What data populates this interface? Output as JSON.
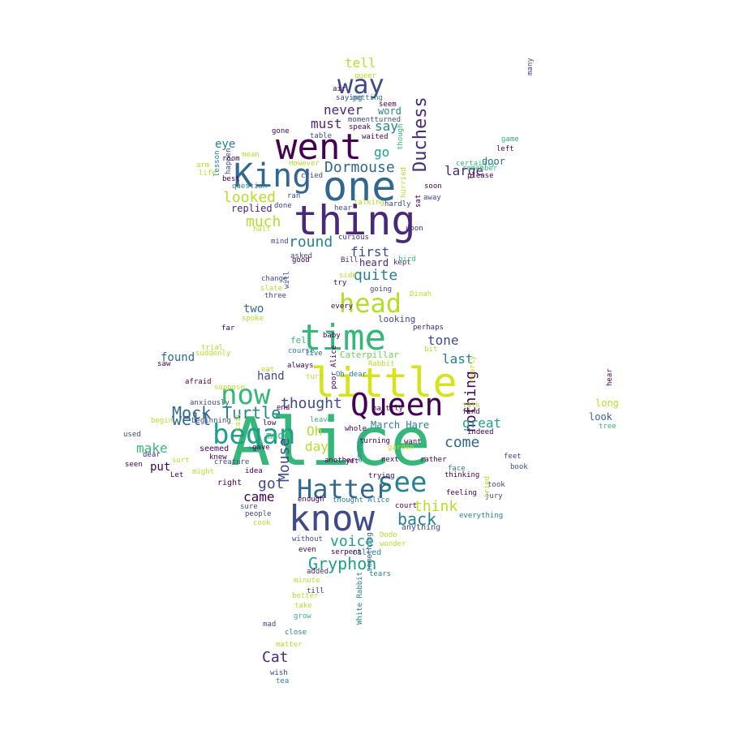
{
  "palette": {
    "dark_purple": "#440154",
    "indigo": "#482878",
    "blue": "#3e4a89",
    "steel_blue": "#31688e",
    "teal": "#26828e",
    "green_teal": "#1f9e89",
    "green": "#35b779",
    "lime": "#6ece58",
    "yellow_green": "#b5de2b",
    "yellow": "#d8e219"
  },
  "words": [
    {
      "text": "Alice",
      "color": "#35b779"
    },
    {
      "text": "little",
      "color": "#d8e219"
    },
    {
      "text": "thing",
      "color": "#482878"
    },
    {
      "text": "one",
      "color": "#31688e"
    },
    {
      "text": "went",
      "color": "#440154"
    },
    {
      "text": "know",
      "color": "#3e4a89"
    },
    {
      "text": "time",
      "color": "#35b779"
    },
    {
      "text": "Queen",
      "color": "#440154"
    },
    {
      "text": "King",
      "color": "#31688e"
    },
    {
      "text": "began",
      "color": "#1f9e89"
    },
    {
      "text": "see",
      "color": "#26828e"
    },
    {
      "text": "Hatter",
      "color": "#31688e"
    },
    {
      "text": "head",
      "color": "#b5de2b"
    },
    {
      "text": "now",
      "color": "#35b779"
    },
    {
      "text": "way",
      "color": "#3e4a89"
    },
    {
      "text": "Duchess",
      "color": "#482878"
    },
    {
      "text": "Mock",
      "color": "#31688e"
    },
    {
      "text": "Turtle",
      "color": "#26828e"
    },
    {
      "text": "thought",
      "color": "#3e4a89"
    },
    {
      "text": "Dormouse",
      "color": "#31688e"
    },
    {
      "text": "Gryphon",
      "color": "#1f9e89"
    },
    {
      "text": "Mouse",
      "color": "#3e4a89"
    },
    {
      "text": "nothing",
      "color": "#440154"
    },
    {
      "text": "round",
      "color": "#26828e"
    },
    {
      "text": "quite",
      "color": "#26828e"
    },
    {
      "text": "looked",
      "color": "#b5de2b"
    },
    {
      "text": "much",
      "color": "#b5de2b"
    },
    {
      "text": "well",
      "color": "#31688e"
    },
    {
      "text": "make",
      "color": "#35b779"
    },
    {
      "text": "back",
      "color": "#26828e"
    },
    {
      "text": "voice",
      "color": "#1f9e89"
    },
    {
      "text": "think",
      "color": "#b5de2b"
    },
    {
      "text": "come",
      "color": "#31688e"
    },
    {
      "text": "got",
      "color": "#3e4a89"
    },
    {
      "text": "came",
      "color": "#440154"
    },
    {
      "text": "Cat",
      "color": "#482878"
    },
    {
      "text": "first",
      "color": "#3e4a89"
    },
    {
      "text": "large",
      "color": "#482878"
    },
    {
      "text": "last",
      "color": "#26828e"
    },
    {
      "text": "great",
      "color": "#1f9e89"
    },
    {
      "text": "March Hare",
      "color": "#26828e"
    },
    {
      "text": "tone",
      "color": "#3e4a89"
    },
    {
      "text": "found",
      "color": "#31688e"
    },
    {
      "text": "hand",
      "color": "#3e4a89"
    },
    {
      "text": "day",
      "color": "#b5de2b"
    },
    {
      "text": "Oh",
      "color": "#b5de2b"
    },
    {
      "text": "never",
      "color": "#482878"
    },
    {
      "text": "must",
      "color": "#482878"
    },
    {
      "text": "say",
      "color": "#26828e"
    },
    {
      "text": "tell",
      "color": "#b5de2b"
    },
    {
      "text": "go",
      "color": "#1f9e89"
    },
    {
      "text": "eye",
      "color": "#26828e"
    },
    {
      "text": "door",
      "color": "#31688e"
    },
    {
      "text": "replied",
      "color": "#482878"
    },
    {
      "text": "word",
      "color": "#26828e"
    },
    {
      "text": "two",
      "color": "#31688e"
    },
    {
      "text": "put",
      "color": "#440154"
    },
    {
      "text": "long",
      "color": "#b5de2b"
    },
    {
      "text": "look",
      "color": "#31688e"
    },
    {
      "text": "heard",
      "color": "#482878"
    },
    {
      "text": "Caterpillar",
      "color": "#6ece58"
    },
    {
      "text": "made",
      "color": "#35b779"
    },
    {
      "text": "felt",
      "color": "#35b779"
    },
    {
      "text": "looking",
      "color": "#3e4a89"
    },
    {
      "text": "anything",
      "color": "#3e4a89"
    },
    {
      "text": "right",
      "color": "#440154"
    },
    {
      "text": "seemed",
      "color": "#440154"
    },
    {
      "text": "called",
      "color": "#26828e"
    },
    {
      "text": "added",
      "color": "#482878"
    },
    {
      "text": "minute",
      "color": "#b5de2b"
    },
    {
      "text": "White Rabbit",
      "color": "#26828e"
    },
    {
      "text": "something",
      "color": "#31688e"
    },
    {
      "text": "Bill",
      "color": "#482878"
    },
    {
      "text": "asked",
      "color": "#3e4a89"
    },
    {
      "text": "curious",
      "color": "#482878"
    },
    {
      "text": "upon",
      "color": "#482878"
    },
    {
      "text": "kept",
      "color": "#482878"
    },
    {
      "text": "going",
      "color": "#3e4a89"
    },
    {
      "text": "perhaps",
      "color": "#482878"
    },
    {
      "text": "course",
      "color": "#26828e"
    },
    {
      "text": "live",
      "color": "#31688e"
    },
    {
      "text": "hastily",
      "color": "#440154"
    },
    {
      "text": "leave",
      "color": "#35b779"
    },
    {
      "text": "find",
      "color": "#440154"
    },
    {
      "text": "indeed",
      "color": "#440154"
    },
    {
      "text": "idea",
      "color": "#440154"
    },
    {
      "text": "gave",
      "color": "#440154"
    },
    {
      "text": "low",
      "color": "#440154"
    },
    {
      "text": "end",
      "color": "#440154"
    },
    {
      "text": "enough",
      "color": "#440154"
    },
    {
      "text": "thought Alice",
      "color": "#26828e"
    },
    {
      "text": "another",
      "color": "#440154"
    },
    {
      "text": "next",
      "color": "#440154"
    },
    {
      "text": "rather",
      "color": "#440154"
    },
    {
      "text": "face",
      "color": "#26828e"
    },
    {
      "text": "took",
      "color": "#3e4a89"
    },
    {
      "text": "jury",
      "color": "#3e4a89"
    },
    {
      "text": "garden",
      "color": "#b5de2b"
    },
    {
      "text": "trying",
      "color": "#440154"
    },
    {
      "text": "without",
      "color": "#3e4a89"
    },
    {
      "text": "even",
      "color": "#440154"
    },
    {
      "text": "serpent",
      "color": "#440154"
    },
    {
      "text": "tears",
      "color": "#26828e"
    },
    {
      "text": "till",
      "color": "#482878"
    },
    {
      "text": "better",
      "color": "#b5de2b"
    },
    {
      "text": "take",
      "color": "#b5de2b"
    },
    {
      "text": "grow",
      "color": "#35b779"
    },
    {
      "text": "mad",
      "color": "#3e4a89"
    },
    {
      "text": "close",
      "color": "#26828e"
    },
    {
      "text": "matter",
      "color": "#b5de2b"
    },
    {
      "text": "wish",
      "color": "#3e4a89"
    },
    {
      "text": "tea",
      "color": "#26828e"
    },
    {
      "text": "Dodo",
      "color": "#b5de2b"
    },
    {
      "text": "wonder",
      "color": "#b5de2b"
    },
    {
      "text": "cook",
      "color": "#b5de2b"
    },
    {
      "text": "people",
      "color": "#3e4a89"
    },
    {
      "text": "sure",
      "color": "#3e4a89"
    },
    {
      "text": "Let",
      "color": "#440154"
    },
    {
      "text": "creature",
      "color": "#3e4a89"
    },
    {
      "text": "dear",
      "color": "#482878"
    },
    {
      "text": "seen",
      "color": "#440154"
    },
    {
      "text": "used",
      "color": "#3e4a89"
    },
    {
      "text": "sort",
      "color": "#b5de2b"
    },
    {
      "text": "knew",
      "color": "#440154"
    },
    {
      "text": "begin",
      "color": "#b5de2b"
    },
    {
      "text": "beginning",
      "color": "#3e4a89"
    },
    {
      "text": "anxiously",
      "color": "#3e4a89"
    },
    {
      "text": "saw",
      "color": "#440154"
    },
    {
      "text": "suddenly",
      "color": "#b5de2b"
    },
    {
      "text": "trial",
      "color": "#b5de2b"
    },
    {
      "text": "eat",
      "color": "#b5de2b"
    },
    {
      "text": "always",
      "color": "#440154"
    },
    {
      "text": "bit",
      "color": "#b5de2b"
    },
    {
      "text": "away",
      "color": "#3e4a89"
    },
    {
      "text": "soon",
      "color": "#440154"
    },
    {
      "text": "sat",
      "color": "#440154"
    },
    {
      "text": "hurried",
      "color": "#b5de2b"
    },
    {
      "text": "though",
      "color": "#35b779"
    },
    {
      "text": "certainly",
      "color": "#35b779"
    },
    {
      "text": "remember",
      "color": "#35b779"
    },
    {
      "text": "please",
      "color": "#440154"
    },
    {
      "text": "left",
      "color": "#440154"
    },
    {
      "text": "game",
      "color": "#35b779"
    },
    {
      "text": "many",
      "color": "#3e4a89"
    },
    {
      "text": "saying",
      "color": "#3e4a89"
    },
    {
      "text": "getting",
      "color": "#26828e"
    },
    {
      "text": "air",
      "color": "#440154"
    },
    {
      "text": "momentturned",
      "color": "#3e4a89"
    },
    {
      "text": "speak",
      "color": "#440154"
    },
    {
      "text": "waited",
      "color": "#440154"
    },
    {
      "text": "table",
      "color": "#3e4a89"
    },
    {
      "text": "However",
      "color": "#b5de2b"
    },
    {
      "text": "cried",
      "color": "#3e4a89"
    },
    {
      "text": "ran",
      "color": "#3e4a89"
    },
    {
      "text": "done",
      "color": "#3e4a89"
    },
    {
      "text": "half",
      "color": "#b5de2b"
    },
    {
      "text": "talking",
      "color": "#b5de2b"
    },
    {
      "text": "hear",
      "color": "#3e4a89"
    },
    {
      "text": "hardly",
      "color": "#3e4a89"
    },
    {
      "text": "good",
      "color": "#440154"
    },
    {
      "text": "bird",
      "color": "#35b779"
    },
    {
      "text": "side",
      "color": "#b5de2b"
    },
    {
      "text": "try",
      "color": "#440154"
    },
    {
      "text": "will",
      "color": "#3e4a89"
    },
    {
      "text": "change",
      "color": "#3e4a89"
    },
    {
      "text": "three",
      "color": "#3e4a89"
    },
    {
      "text": "slate",
      "color": "#b5de2b"
    },
    {
      "text": "spoke",
      "color": "#b5de2b"
    },
    {
      "text": "arm",
      "color": "#b5de2b"
    },
    {
      "text": "life",
      "color": "#b5de2b"
    },
    {
      "text": "best",
      "color": "#440154"
    },
    {
      "text": "room",
      "color": "#440154"
    },
    {
      "text": "mean",
      "color": "#b5de2b"
    },
    {
      "text": "lesson",
      "color": "#26828e"
    },
    {
      "text": "happen",
      "color": "#3e4a89"
    },
    {
      "text": "question",
      "color": "#26828e"
    },
    {
      "text": "mind",
      "color": "#3e4a89"
    },
    {
      "text": "Rabbit",
      "color": "#b5de2b"
    },
    {
      "text": "baby",
      "color": "#440154"
    },
    {
      "text": "feet",
      "color": "#3e4a89"
    },
    {
      "text": "book",
      "color": "#3e4a89"
    },
    {
      "text": "tree",
      "color": "#35b779"
    },
    {
      "text": "hear",
      "color": "#440154"
    },
    {
      "text": "seem",
      "color": "#440154"
    },
    {
      "text": "queer",
      "color": "#b5de2b"
    },
    {
      "text": "gone",
      "color": "#440154"
    },
    {
      "text": "far",
      "color": "#440154"
    },
    {
      "text": "thinking",
      "color": "#440154"
    },
    {
      "text": "feeling",
      "color": "#440154"
    },
    {
      "text": "tried",
      "color": "#b5de2b"
    },
    {
      "text": "everything",
      "color": "#26828e"
    },
    {
      "text": "nearly",
      "color": "#b5de2b"
    },
    {
      "text": "talk",
      "color": "#b5de2b"
    },
    {
      "text": "yet",
      "color": "#440154"
    },
    {
      "text": "turning",
      "color": "#440154"
    },
    {
      "text": "among",
      "color": "#26828e"
    },
    {
      "text": "afraid",
      "color": "#440154"
    },
    {
      "text": "suppose",
      "color": "#b5de2b"
    },
    {
      "text": "might",
      "color": "#b5de2b"
    },
    {
      "text": "turn",
      "color": "#b5de2b"
    },
    {
      "text": "tail",
      "color": "#b5de2b"
    },
    {
      "text": "Dinah",
      "color": "#b5de2b"
    },
    {
      "text": "every",
      "color": "#440154"
    },
    {
      "text": "whole",
      "color": "#440154"
    },
    {
      "text": "want",
      "color": "#440154"
    },
    {
      "text": "court",
      "color": "#440154"
    },
    {
      "text": "poor Alice",
      "color": "#440154"
    },
    {
      "text": "Oh dear",
      "color": "#26828e"
    },
    {
      "text": "may",
      "color": "#440154"
    },
    {
      "text": "use",
      "color": "#440154"
    },
    {
      "text": "really",
      "color": "#440154"
    },
    {
      "text": "growing",
      "color": "#26828e"
    }
  ]
}
